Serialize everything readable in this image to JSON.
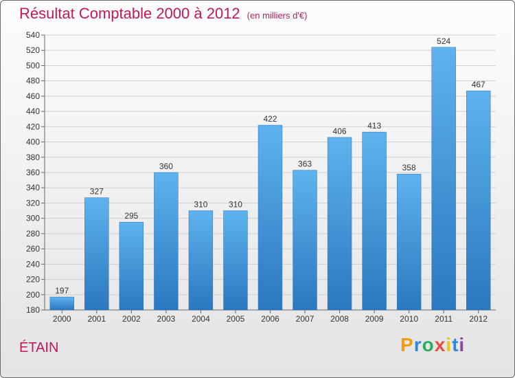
{
  "chart_data": {
    "type": "bar",
    "title": "Résultat Comptable 2000 à 2012",
    "subtitle": "(en milliers d'€)",
    "categories": [
      "2000",
      "2001",
      "2002",
      "2003",
      "2004",
      "2005",
      "2006",
      "2007",
      "2008",
      "2009",
      "2010",
      "2011",
      "2012"
    ],
    "values": [
      197,
      327,
      295,
      360,
      310,
      310,
      422,
      363,
      406,
      413,
      358,
      524,
      467
    ],
    "ylim": [
      180,
      540
    ],
    "yticks": [
      180,
      200,
      220,
      240,
      260,
      280,
      300,
      320,
      340,
      360,
      380,
      400,
      420,
      440,
      460,
      480,
      500,
      520,
      540
    ],
    "xlabel": "",
    "ylabel": "",
    "grid": true,
    "bar_color": "#4a9fe0"
  },
  "footer": {
    "town": "ÉTAIN",
    "logo_letters": [
      "P",
      "r",
      "o",
      "x",
      "i",
      "t",
      "i"
    ],
    "logo_colors": [
      "#f39c12",
      "#2e86de",
      "#27ae60",
      "#e74c3c",
      "#f1c40f",
      "#2e86de",
      "#8e44ad"
    ]
  }
}
